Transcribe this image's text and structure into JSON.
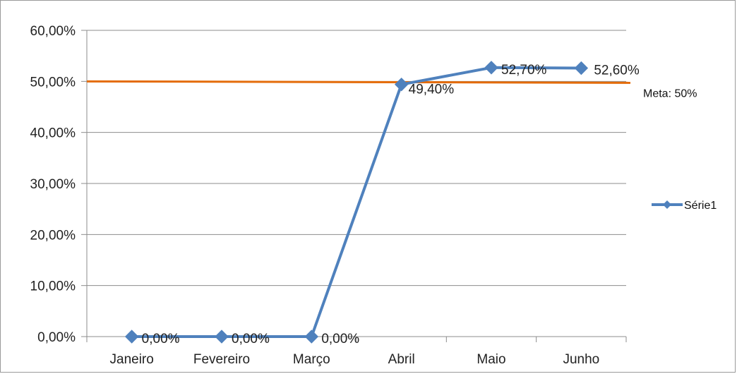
{
  "chart_data": {
    "type": "line",
    "categories": [
      "Janeiro",
      "Fevereiro",
      "Março",
      "Abril",
      "Maio",
      "Junho"
    ],
    "series": [
      {
        "name": "Série1",
        "values": [
          0.0,
          0.0,
          0.0,
          49.4,
          52.7,
          52.6
        ],
        "labels": [
          "0,00%",
          "0,00%",
          "0,00%",
          "49,40%",
          "52,70%",
          "52,60%"
        ],
        "color": "#4f81bd"
      }
    ],
    "target": {
      "label": "Meta: 50%",
      "value": 50,
      "color": "#e46c0a"
    },
    "y_ticks": [
      {
        "value": 0,
        "label": "0,00%"
      },
      {
        "value": 10,
        "label": "10,00%"
      },
      {
        "value": 20,
        "label": "20,00%"
      },
      {
        "value": 30,
        "label": "30,00%"
      },
      {
        "value": 40,
        "label": "40,00%"
      },
      {
        "value": 50,
        "label": "50,00%"
      },
      {
        "value": 60,
        "label": "60,00%"
      }
    ],
    "ylim": [
      0,
      60
    ],
    "grid": true,
    "legend_position": "right",
    "gridline_color": "#8c8c8c"
  }
}
